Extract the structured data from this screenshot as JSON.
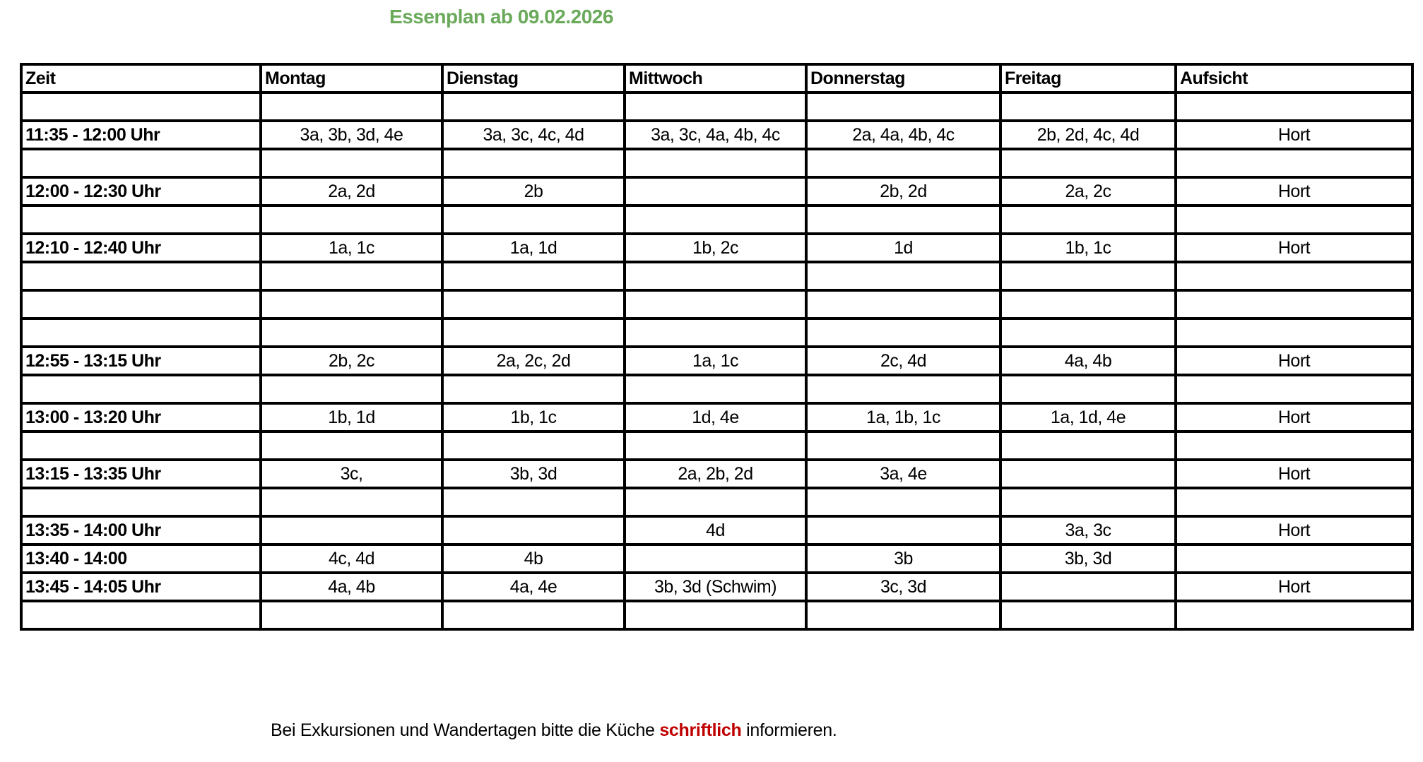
{
  "title": "Essenplan ab 09.02.2026",
  "colors": {
    "title": "#6aaa5a",
    "emphasis": "#c00000"
  },
  "table": {
    "headers": [
      "Zeit",
      "Montag",
      "Dienstag",
      "Mittwoch",
      "Donnerstag",
      "Freitag",
      "Aufsicht"
    ],
    "rows": [
      [
        "",
        "",
        "",
        "",
        "",
        "",
        ""
      ],
      [
        "11:35 - 12:00 Uhr",
        "3a, 3b, 3d, 4e",
        "3a, 3c, 4c, 4d",
        "3a, 3c, 4a, 4b, 4c",
        "2a, 4a, 4b, 4c",
        "2b, 2d, 4c, 4d",
        "Hort"
      ],
      [
        "",
        "",
        "",
        "",
        "",
        "",
        ""
      ],
      [
        "12:00 - 12:30 Uhr",
        "2a, 2d",
        "2b",
        "",
        "2b, 2d",
        "2a, 2c",
        "Hort"
      ],
      [
        "",
        "",
        "",
        "",
        "",
        "",
        ""
      ],
      [
        "12:10 - 12:40 Uhr",
        "1a, 1c",
        "1a, 1d",
        "1b, 2c",
        "1d",
        "1b, 1c",
        "Hort"
      ],
      [
        "",
        "",
        "",
        "",
        "",
        "",
        ""
      ],
      [
        "",
        "",
        "",
        "",
        "",
        "",
        ""
      ],
      [
        "",
        "",
        "",
        "",
        "",
        "",
        ""
      ],
      [
        "12:55 - 13:15 Uhr",
        "2b, 2c",
        "2a, 2c, 2d",
        "1a, 1c",
        "2c, 4d",
        "4a, 4b",
        "Hort"
      ],
      [
        "",
        "",
        "",
        "",
        "",
        "",
        ""
      ],
      [
        "13:00 - 13:20 Uhr",
        "1b, 1d",
        "1b, 1c",
        "1d, 4e",
        "1a, 1b, 1c",
        "1a, 1d, 4e",
        "Hort"
      ],
      [
        "",
        "",
        "",
        "",
        "",
        "",
        ""
      ],
      [
        "13:15 - 13:35 Uhr",
        "3c,",
        "3b, 3d",
        "2a, 2b,  2d",
        "3a, 4e",
        "",
        "Hort"
      ],
      [
        "",
        "",
        "",
        "",
        "",
        "",
        ""
      ],
      [
        "13:35 - 14:00 Uhr",
        "",
        "",
        "4d",
        "",
        "3a, 3c",
        "Hort"
      ],
      [
        "13:40 - 14:00",
        "4c, 4d",
        "4b",
        "",
        "3b",
        "3b, 3d",
        ""
      ],
      [
        "13:45 - 14:05 Uhr",
        "4a, 4b",
        "4a, 4e",
        "3b, 3d (Schwim)",
        "3c, 3d",
        "",
        "Hort"
      ],
      [
        "",
        "",
        "",
        "",
        "",
        "",
        ""
      ]
    ]
  },
  "note": {
    "before": "Bei Exkursionen und Wandertagen bitte die Küche ",
    "emphasis": "schriftlich",
    "after": " informieren."
  }
}
